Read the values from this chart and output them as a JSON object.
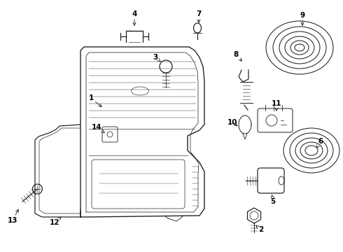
{
  "bg_color": "#ffffff",
  "lc": "#1a1a1a",
  "lw": 0.85,
  "figsize": [
    4.9,
    3.6
  ],
  "dpi": 100
}
